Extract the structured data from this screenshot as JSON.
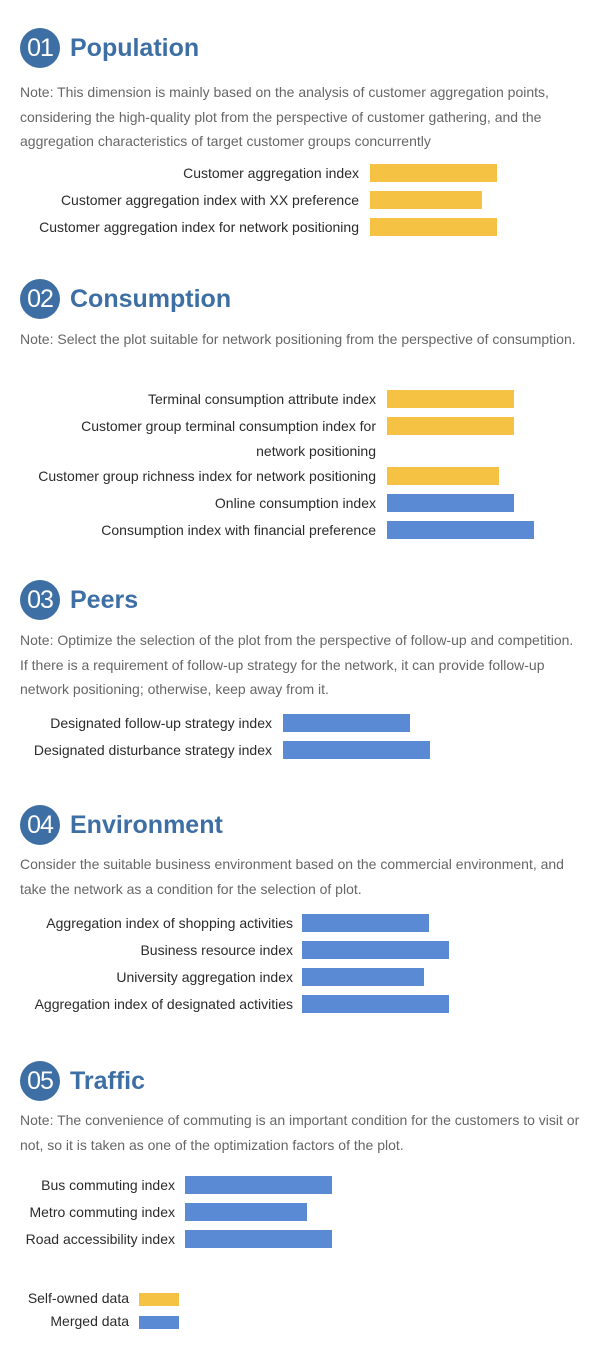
{
  "colors": {
    "self_owned": "#f6c244",
    "merged": "#5a8ad4",
    "accent": "#3d6fa5"
  },
  "sections": [
    {
      "num": "01",
      "title": "Population",
      "note": "Note: This dimension is mainly based on the analysis of customer aggregation points, considering the high-quality plot from the perspective of customer gathering, and the aggregation characteristics of target customer groups concurrently",
      "items": [
        {
          "label": "Customer aggregation index",
          "value": 127,
          "source": "self_owned"
        },
        {
          "label": "Customer aggregation index with XX preference",
          "value": 112,
          "source": "self_owned"
        },
        {
          "label": "Customer aggregation index for network positioning",
          "value": 127,
          "source": "self_owned"
        }
      ]
    },
    {
      "num": "02",
      "title": "Consumption",
      "note": "Note: Select the plot suitable for network positioning from the perspective of consumption.",
      "items": [
        {
          "label": "Terminal consumption attribute index",
          "value": 127,
          "source": "self_owned"
        },
        {
          "label": "Customer group terminal consumption index for network positioning",
          "value": 127,
          "source": "self_owned"
        },
        {
          "label": "Customer group richness index for network positioning",
          "value": 112,
          "source": "self_owned"
        },
        {
          "label": "Online consumption index",
          "value": 127,
          "source": "merged"
        },
        {
          "label": "Consumption index with financial preference",
          "value": 147,
          "source": "merged"
        }
      ]
    },
    {
      "num": "03",
      "title": "Peers",
      "note": "Note: Optimize the selection of the plot from the perspective of follow-up and competition. If there is a requirement of follow-up strategy for the network, it can provide follow-up network positioning; otherwise, keep away from it.",
      "items": [
        {
          "label": "Designated follow-up strategy index",
          "value": 127,
          "source": "merged"
        },
        {
          "label": "Designated disturbance strategy index",
          "value": 147,
          "source": "merged"
        }
      ]
    },
    {
      "num": "04",
      "title": "Environment",
      "note": "Consider the suitable business environment based on the commercial environment, and take the network as a condition for the selection of plot.",
      "items": [
        {
          "label": "Aggregation index of shopping activities",
          "value": 127,
          "source": "merged"
        },
        {
          "label": "Business resource index",
          "value": 147,
          "source": "merged"
        },
        {
          "label": "University aggregation index",
          "value": 122,
          "source": "merged"
        },
        {
          "label": "Aggregation index of designated activities",
          "value": 147,
          "source": "merged"
        }
      ]
    },
    {
      "num": "05",
      "title": "Traffic",
      "note": "Note: The convenience of commuting is an important condition for the customers to visit or not, so it is taken as one of the optimization factors of the plot.",
      "items": [
        {
          "label": "Bus commuting index",
          "value": 147,
          "source": "merged"
        },
        {
          "label": "Metro commuting index",
          "value": 122,
          "source": "merged"
        },
        {
          "label": "Road accessibility index",
          "value": 147,
          "source": "merged"
        }
      ]
    }
  ],
  "legend": [
    {
      "label": "Self-owned data",
      "source": "self_owned"
    },
    {
      "label": "Merged data",
      "source": "merged"
    }
  ],
  "chart_data": {
    "type": "bar",
    "orientation": "horizontal",
    "groups": [
      "Population",
      "Consumption",
      "Peers",
      "Environment",
      "Traffic"
    ],
    "legend": [
      "Self-owned data",
      "Merged data"
    ],
    "legend_placement": "bottom-left",
    "grid": false
  }
}
